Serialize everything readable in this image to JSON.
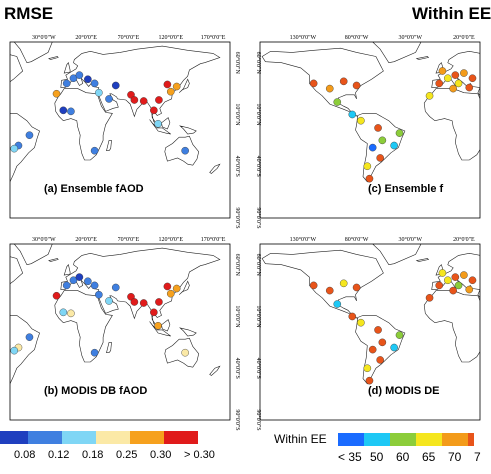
{
  "titles": {
    "left": "RMSE",
    "right": "Within EE"
  },
  "map_ticks": {
    "left_top": [
      "30°0'0\"W",
      "20°0'0\"E",
      "70°0'0\"E",
      "120°0'0\"E",
      "170°0'0\"E"
    ],
    "right_top": [
      "130°0'0\"W",
      "80°0'0\"W",
      "30°0'0\"W",
      "20°0'0\"E"
    ],
    "lat_left": [
      "60°0'0\"N",
      "10°0'0\"N",
      "40°0'0\"S",
      "90°0'0\"S"
    ],
    "lat_right": [
      "60°0'0\"N",
      "10°0'0\"N",
      "40°0'0\"S",
      "90°0'0\"S"
    ]
  },
  "panels": {
    "a": {
      "label": "(a) Ensemble fAOD"
    },
    "b": {
      "label": "(b) MODIS DB fAOD"
    },
    "c": {
      "label": "(c) Ensemble f"
    },
    "d": {
      "label": "(d) MODIS DE"
    }
  },
  "rmse_colorbar": {
    "colors": [
      "#1f3fbf",
      "#3f7fe0",
      "#7fd6f5",
      "#fbe9a6",
      "#f6a11e",
      "#e01b1b"
    ],
    "labels": [
      "0.08",
      "0.12",
      "0.18",
      "0.25",
      "0.30",
      "> 0.30"
    ]
  },
  "ee_colorbar": {
    "title": "Within EE",
    "colors": [
      "#1a6bff",
      "#1ec8f5",
      "#8ccd3a",
      "#f5e61e",
      "#f39b1a",
      "#e8541a"
    ],
    "labels": [
      "< 35",
      "50",
      "60",
      "65",
      "70",
      "7"
    ]
  },
  "sites": {
    "a": [
      {
        "lon": -122,
        "lat": 38,
        "v": 3
      },
      {
        "lon": -106,
        "lat": 32,
        "v": 1
      },
      {
        "lon": -90,
        "lat": 42,
        "v": 1
      },
      {
        "lon": -77,
        "lat": 39,
        "v": 1
      },
      {
        "lon": -60,
        "lat": -20,
        "v": 1
      },
      {
        "lon": -65,
        "lat": -23,
        "v": 2
      },
      {
        "lon": -3,
        "lat": 40,
        "v": 1
      },
      {
        "lon": 5,
        "lat": 45,
        "v": 1
      },
      {
        "lon": 12,
        "lat": 48,
        "v": 1
      },
      {
        "lon": 22,
        "lat": 44,
        "v": 0
      },
      {
        "lon": 30,
        "lat": 40,
        "v": 1
      },
      {
        "lon": -15,
        "lat": 30,
        "v": 4
      },
      {
        "lon": -7,
        "lat": 14,
        "v": 0
      },
      {
        "lon": 2,
        "lat": 13,
        "v": 1
      },
      {
        "lon": 35,
        "lat": 31,
        "v": 2
      },
      {
        "lon": 47,
        "lat": 25,
        "v": 1
      },
      {
        "lon": 55,
        "lat": 38,
        "v": 0
      },
      {
        "lon": 73,
        "lat": 29,
        "v": 5
      },
      {
        "lon": 77,
        "lat": 24,
        "v": 5
      },
      {
        "lon": 88,
        "lat": 23,
        "v": 5
      },
      {
        "lon": 100,
        "lat": 14,
        "v": 5
      },
      {
        "lon": 106,
        "lat": 24,
        "v": 5
      },
      {
        "lon": 116,
        "lat": 39,
        "v": 5
      },
      {
        "lon": 120,
        "lat": 32,
        "v": 4
      },
      {
        "lon": 127,
        "lat": 37,
        "v": 4
      },
      {
        "lon": 105,
        "lat": 1,
        "v": 2
      },
      {
        "lon": 137,
        "lat": -25,
        "v": 1
      },
      {
        "lon": 30,
        "lat": -25,
        "v": 1
      },
      {
        "lon": -47,
        "lat": -10,
        "v": 1
      }
    ],
    "b": [
      {
        "lon": -122,
        "lat": 38,
        "v": 3
      },
      {
        "lon": -106,
        "lat": 32,
        "v": 2
      },
      {
        "lon": -90,
        "lat": 42,
        "v": 1
      },
      {
        "lon": -77,
        "lat": 39,
        "v": 1
      },
      {
        "lon": -60,
        "lat": -20,
        "v": 3
      },
      {
        "lon": -65,
        "lat": -23,
        "v": 2
      },
      {
        "lon": -3,
        "lat": 40,
        "v": 1
      },
      {
        "lon": 5,
        "lat": 45,
        "v": 1
      },
      {
        "lon": 12,
        "lat": 48,
        "v": 0
      },
      {
        "lon": 22,
        "lat": 44,
        "v": 1
      },
      {
        "lon": 30,
        "lat": 40,
        "v": 1
      },
      {
        "lon": -15,
        "lat": 30,
        "v": 5
      },
      {
        "lon": -7,
        "lat": 14,
        "v": 2
      },
      {
        "lon": 2,
        "lat": 13,
        "v": 3
      },
      {
        "lon": 35,
        "lat": 31,
        "v": 1
      },
      {
        "lon": 47,
        "lat": 25,
        "v": 2
      },
      {
        "lon": 55,
        "lat": 38,
        "v": 1
      },
      {
        "lon": 73,
        "lat": 29,
        "v": 5
      },
      {
        "lon": 77,
        "lat": 24,
        "v": 5
      },
      {
        "lon": 88,
        "lat": 23,
        "v": 5
      },
      {
        "lon": 100,
        "lat": 14,
        "v": 5
      },
      {
        "lon": 106,
        "lat": 24,
        "v": 5
      },
      {
        "lon": 116,
        "lat": 39,
        "v": 5
      },
      {
        "lon": 120,
        "lat": 32,
        "v": 4
      },
      {
        "lon": 127,
        "lat": 37,
        "v": 4
      },
      {
        "lon": 105,
        "lat": 1,
        "v": 4
      },
      {
        "lon": 137,
        "lat": -25,
        "v": 3
      },
      {
        "lon": 30,
        "lat": -25,
        "v": 1
      },
      {
        "lon": -47,
        "lat": -10,
        "v": 1
      }
    ],
    "c": [
      {
        "lon": -120,
        "lat": 40,
        "v": 5
      },
      {
        "lon": -105,
        "lat": 35,
        "v": 4
      },
      {
        "lon": -92,
        "lat": 42,
        "v": 5
      },
      {
        "lon": -80,
        "lat": 38,
        "v": 5
      },
      {
        "lon": -98,
        "lat": 22,
        "v": 2
      },
      {
        "lon": -84,
        "lat": 10,
        "v": 1
      },
      {
        "lon": -76,
        "lat": 4,
        "v": 3
      },
      {
        "lon": -60,
        "lat": -3,
        "v": 5
      },
      {
        "lon": -56,
        "lat": -15,
        "v": 2
      },
      {
        "lon": -65,
        "lat": -22,
        "v": 0
      },
      {
        "lon": -58,
        "lat": -32,
        "v": 5
      },
      {
        "lon": -70,
        "lat": -40,
        "v": 3
      },
      {
        "lon": -68,
        "lat": -52,
        "v": 5
      },
      {
        "lon": -40,
        "lat": -8,
        "v": 2
      },
      {
        "lon": -45,
        "lat": -20,
        "v": 1
      },
      {
        "lon": -3,
        "lat": 40,
        "v": 5
      },
      {
        "lon": 5,
        "lat": 45,
        "v": 3
      },
      {
        "lon": 12,
        "lat": 48,
        "v": 5
      },
      {
        "lon": 20,
        "lat": 50,
        "v": 4
      },
      {
        "lon": 28,
        "lat": 45,
        "v": 5
      },
      {
        "lon": 15,
        "lat": 40,
        "v": 3
      },
      {
        "lon": 0,
        "lat": 52,
        "v": 4
      },
      {
        "lon": -12,
        "lat": 28,
        "v": 3
      },
      {
        "lon": 10,
        "lat": 35,
        "v": 4
      },
      {
        "lon": 25,
        "lat": 36,
        "v": 5
      }
    ],
    "d": [
      {
        "lon": -120,
        "lat": 40,
        "v": 5
      },
      {
        "lon": -105,
        "lat": 35,
        "v": 5
      },
      {
        "lon": -92,
        "lat": 42,
        "v": 3
      },
      {
        "lon": -80,
        "lat": 38,
        "v": 5
      },
      {
        "lon": -98,
        "lat": 22,
        "v": 1
      },
      {
        "lon": -84,
        "lat": 10,
        "v": 5
      },
      {
        "lon": -76,
        "lat": 4,
        "v": 3
      },
      {
        "lon": -60,
        "lat": -3,
        "v": 5
      },
      {
        "lon": -56,
        "lat": -15,
        "v": 5
      },
      {
        "lon": -65,
        "lat": -22,
        "v": 5
      },
      {
        "lon": -58,
        "lat": -32,
        "v": 5
      },
      {
        "lon": -70,
        "lat": -40,
        "v": 3
      },
      {
        "lon": -68,
        "lat": -52,
        "v": 5
      },
      {
        "lon": -40,
        "lat": -8,
        "v": 2
      },
      {
        "lon": -45,
        "lat": -20,
        "v": 1
      },
      {
        "lon": -3,
        "lat": 40,
        "v": 5
      },
      {
        "lon": 5,
        "lat": 45,
        "v": 3
      },
      {
        "lon": 12,
        "lat": 48,
        "v": 5
      },
      {
        "lon": 20,
        "lat": 50,
        "v": 4
      },
      {
        "lon": 28,
        "lat": 45,
        "v": 5
      },
      {
        "lon": 15,
        "lat": 40,
        "v": 2
      },
      {
        "lon": 0,
        "lat": 52,
        "v": 3
      },
      {
        "lon": -12,
        "lat": 28,
        "v": 5
      },
      {
        "lon": 10,
        "lat": 35,
        "v": 5
      },
      {
        "lon": 25,
        "lat": 36,
        "v": 4
      }
    ]
  }
}
